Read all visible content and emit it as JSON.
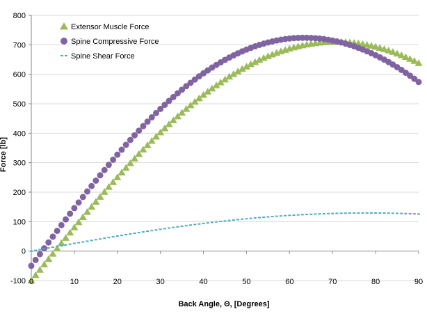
{
  "chart_data": {
    "type": "scatter",
    "title": "",
    "xlabel": "Back Angle, Θ, [Degrees]",
    "ylabel": "Force [lb]",
    "xlim": [
      0,
      90
    ],
    "ylim": [
      -100,
      800
    ],
    "x_ticks": [
      10,
      20,
      30,
      40,
      50,
      60,
      70,
      80,
      90
    ],
    "y_ticks": [
      -100,
      0,
      100,
      200,
      300,
      400,
      500,
      600,
      700,
      800
    ],
    "x_zero_label": "0",
    "grid": "horizontal",
    "legend_position": "top-left",
    "colors": {
      "extensor": "#9BBB59",
      "compressive": "#8064A2",
      "shear": "#4BACC6",
      "grid": "#D9D9D9",
      "axis": "#868686"
    },
    "series": [
      {
        "name": "Extensor Muscle Force",
        "marker": "triangle",
        "color": "#9BBB59",
        "x": [
          0,
          1,
          2,
          3,
          4,
          5,
          6,
          7,
          8,
          9,
          10,
          11,
          12,
          13,
          14,
          15,
          16,
          17,
          18,
          19,
          20,
          21,
          22,
          23,
          24,
          25,
          26,
          27,
          28,
          29,
          30,
          31,
          32,
          33,
          34,
          35,
          36,
          37,
          38,
          39,
          40,
          41,
          42,
          43,
          44,
          45,
          46,
          47,
          48,
          49,
          50,
          51,
          52,
          53,
          54,
          55,
          56,
          57,
          58,
          59,
          60,
          61,
          62,
          63,
          64,
          65,
          66,
          67,
          68,
          69,
          70,
          71,
          72,
          73,
          74,
          75,
          76,
          77,
          78,
          79,
          80,
          81,
          82,
          83,
          84,
          85,
          86,
          87,
          88,
          89,
          90
        ],
        "values": [
          -100,
          -81.8,
          -63.6,
          -45.4,
          -27.2,
          -9.1,
          8.9,
          26.9,
          44.8,
          62.6,
          80.3,
          97.9,
          115.4,
          132.8,
          150.0,
          167.1,
          184.1,
          200.9,
          217.6,
          234.1,
          250.4,
          266.5,
          282.5,
          298.3,
          313.8,
          329.2,
          344.3,
          359.2,
          373.9,
          388.4,
          402.6,
          416.5,
          430.2,
          443.6,
          456.8,
          469.7,
          482.3,
          494.6,
          506.6,
          518.4,
          529.8,
          540.9,
          551.7,
          562.2,
          572.4,
          582.2,
          591.7,
          600.8,
          609.6,
          618.1,
          626.2,
          634.0,
          641.3,
          648.4,
          655.0,
          661.3,
          667.2,
          672.7,
          677.8,
          682.6,
          687.0,
          691.0,
          694.7,
          697.9,
          700.8,
          703.2,
          705.3,
          707.0,
          708.3,
          709.2,
          709.7,
          709.8,
          709.6,
          708.9,
          707.8,
          706.4,
          704.5,
          702.3,
          699.6,
          696.6,
          693.2,
          689.4,
          685.2,
          680.6,
          675.6,
          670.2,
          664.5,
          658.4,
          651.9,
          645.0,
          637.7
        ]
      },
      {
        "name": "Spine Compressive Force",
        "marker": "circle",
        "color": "#8064A2",
        "x": [
          0,
          1,
          2,
          3,
          4,
          5,
          6,
          7,
          8,
          9,
          10,
          11,
          12,
          13,
          14,
          15,
          16,
          17,
          18,
          19,
          20,
          21,
          22,
          23,
          24,
          25,
          26,
          27,
          28,
          29,
          30,
          31,
          32,
          33,
          34,
          35,
          36,
          37,
          38,
          39,
          40,
          41,
          42,
          43,
          44,
          45,
          46,
          47,
          48,
          49,
          50,
          51,
          52,
          53,
          54,
          55,
          56,
          57,
          58,
          59,
          60,
          61,
          62,
          63,
          64,
          65,
          66,
          67,
          68,
          69,
          70,
          71,
          72,
          73,
          74,
          75,
          76,
          77,
          78,
          79,
          80,
          81,
          82,
          83,
          84,
          85,
          86,
          87,
          88,
          89,
          90
        ],
        "values": [
          -50,
          -30.1,
          -10.3,
          9.6,
          29.4,
          49.0,
          68.6,
          88.1,
          107.5,
          126.8,
          145.9,
          164.9,
          183.7,
          202.4,
          220.8,
          239.1,
          257.2,
          275.0,
          292.6,
          310.0,
          327.2,
          344.0,
          360.6,
          376.9,
          392.9,
          408.6,
          424.1,
          439.2,
          453.9,
          468.4,
          482.5,
          496.2,
          509.6,
          522.6,
          535.3,
          547.6,
          559.5,
          571.0,
          582.2,
          592.9,
          603.2,
          613.2,
          622.7,
          631.8,
          640.5,
          648.8,
          656.7,
          664.1,
          671.1,
          677.7,
          683.8,
          689.5,
          694.8,
          699.6,
          704.0,
          708.0,
          711.5,
          714.6,
          717.2,
          719.4,
          721.2,
          722.5,
          723.4,
          723.8,
          723.8,
          723.3,
          722.4,
          721.1,
          719.3,
          717.1,
          714.5,
          711.4,
          707.9,
          704.0,
          699.6,
          694.8,
          689.6,
          684.0,
          678.0,
          671.5,
          664.6,
          657.3,
          649.6,
          641.5,
          633.0,
          624.1,
          614.8,
          605.1,
          595.0,
          584.6,
          573.8
        ]
      },
      {
        "name": "Spine Shear Force",
        "marker": "dash",
        "color": "#4BACC6",
        "x": [
          0,
          1,
          2,
          3,
          4,
          5,
          6,
          7,
          8,
          9,
          10,
          11,
          12,
          13,
          14,
          15,
          16,
          17,
          18,
          19,
          20,
          21,
          22,
          23,
          24,
          25,
          26,
          27,
          28,
          29,
          30,
          31,
          32,
          33,
          34,
          35,
          36,
          37,
          38,
          39,
          40,
          41,
          42,
          43,
          44,
          45,
          46,
          47,
          48,
          49,
          50,
          51,
          52,
          53,
          54,
          55,
          56,
          57,
          58,
          59,
          60,
          61,
          62,
          63,
          64,
          65,
          66,
          67,
          68,
          69,
          70,
          71,
          72,
          73,
          74,
          75,
          76,
          77,
          78,
          79,
          80,
          81,
          82,
          83,
          84,
          85,
          86,
          87,
          88,
          89,
          90
        ],
        "values": [
          0,
          2.6,
          5.2,
          7.8,
          10.5,
          13.1,
          15.7,
          18.2,
          20.8,
          23.4,
          26.0,
          28.5,
          31.1,
          33.6,
          36.2,
          38.7,
          41.2,
          43.7,
          46.1,
          48.6,
          51.0,
          53.4,
          55.8,
          58.2,
          60.5,
          62.8,
          65.1,
          67.4,
          69.6,
          71.8,
          74.0,
          76.1,
          78.2,
          80.3,
          82.4,
          84.4,
          86.3,
          88.3,
          90.2,
          92.0,
          93.8,
          95.6,
          97.4,
          99.1,
          100.7,
          102.3,
          103.9,
          105.4,
          106.9,
          108.4,
          109.8,
          111.1,
          112.4,
          113.7,
          114.9,
          116.1,
          117.2,
          118.3,
          119.3,
          120.3,
          121.2,
          122.1,
          122.9,
          123.7,
          124.4,
          125.1,
          125.7,
          126.3,
          126.8,
          127.3,
          127.7,
          128.1,
          128.4,
          128.7,
          128.9,
          129.1,
          129.2,
          129.3,
          129.3,
          129.3,
          129.2,
          129.1,
          128.9,
          128.7,
          128.4,
          128.1,
          127.7,
          127.3,
          126.8,
          126.3,
          125.7
        ]
      }
    ]
  }
}
